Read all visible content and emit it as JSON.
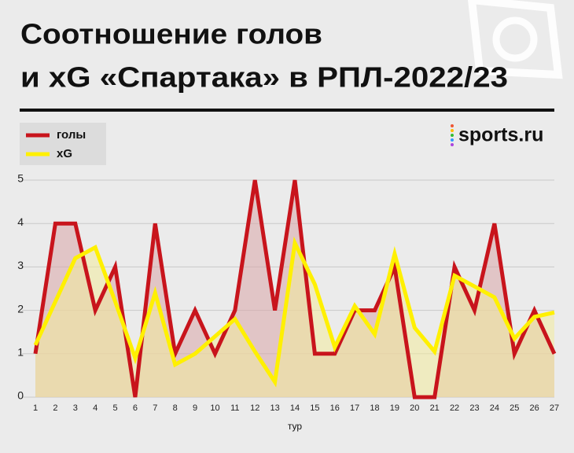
{
  "chart_data": {
    "type": "line",
    "title_line1": "Соотношение голов",
    "title_line2": "и xG «Спартака» в РПЛ-2022/23",
    "source": "sports.ru",
    "xlabel": "тур",
    "categories": [
      1,
      2,
      3,
      4,
      5,
      6,
      7,
      8,
      9,
      10,
      11,
      12,
      13,
      14,
      15,
      16,
      17,
      18,
      19,
      20,
      21,
      22,
      23,
      24,
      25,
      26,
      27
    ],
    "series": [
      {
        "name": "голы",
        "color": "#c8141c",
        "fill": "#d9a5a8",
        "values": [
          1,
          4,
          4,
          2,
          3,
          0,
          4,
          1,
          2,
          1,
          2,
          5,
          2,
          5,
          1,
          1,
          2,
          2,
          3,
          0,
          0,
          3,
          2,
          4,
          1,
          2,
          1
        ]
      },
      {
        "name": "xG",
        "color": "#fff000",
        "fill": "#f3eb9c",
        "values": [
          1.2,
          2.2,
          3.2,
          3.45,
          2.2,
          0.9,
          2.4,
          0.75,
          1.0,
          1.4,
          1.8,
          1.05,
          0.35,
          3.55,
          2.6,
          1.15,
          2.1,
          1.45,
          3.3,
          1.6,
          1.05,
          2.8,
          2.55,
          2.3,
          1.35,
          1.85,
          1.95
        ]
      }
    ],
    "ylim": [
      0,
      5
    ],
    "yticks": [
      0,
      1,
      2,
      3,
      4,
      5
    ],
    "grid": true,
    "legend": "top-left"
  }
}
